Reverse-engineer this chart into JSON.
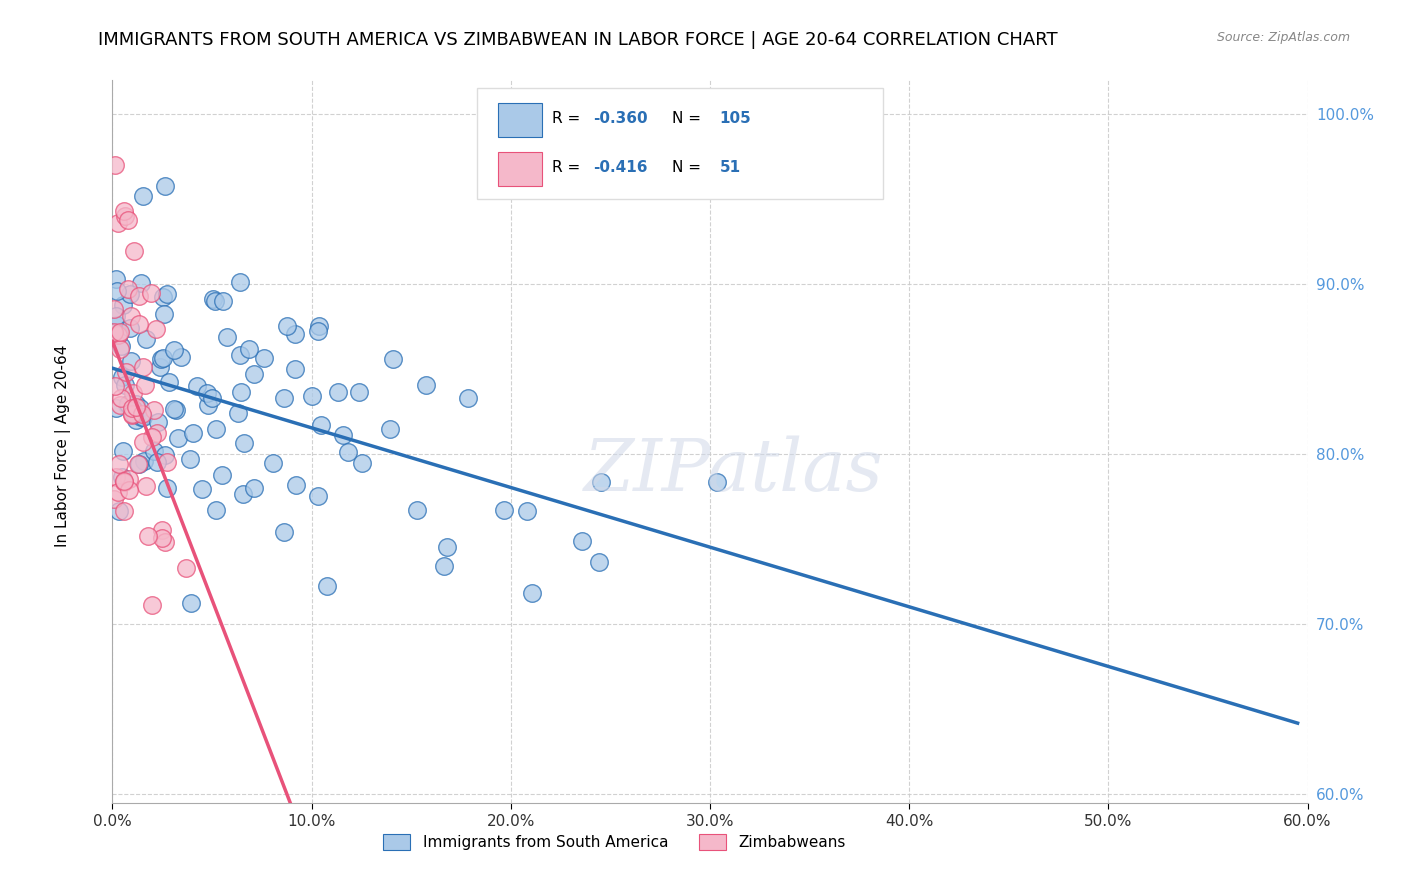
{
  "title": "IMMIGRANTS FROM SOUTH AMERICA VS ZIMBABWEAN IN LABOR FORCE | AGE 20-64 CORRELATION CHART",
  "source": "Source: ZipAtlas.com",
  "ylabel": "In Labor Force | Age 20-64",
  "legend1_label": "Immigrants from South America",
  "legend2_label": "Zimbabweans",
  "R1": -0.36,
  "N1": 105,
  "R2": -0.416,
  "N2": 51,
  "xlim": [
    0.0,
    0.6
  ],
  "ylim": [
    0.595,
    1.02
  ],
  "xticks": [
    0.0,
    0.1,
    0.2,
    0.3,
    0.4,
    0.5,
    0.6
  ],
  "yticks": [
    0.6,
    0.7,
    0.8,
    0.9,
    1.0
  ],
  "color_blue": "#aac9e8",
  "color_pink": "#f5b8ca",
  "line_blue": "#2a6fb5",
  "line_pink": "#e8527a",
  "line_pink_dashed": "#f0a0b8",
  "watermark": "ZIPatlas",
  "background_color": "#ffffff",
  "grid_color": "#cccccc",
  "title_fontsize": 13,
  "ylabel_fontsize": 11,
  "tick_fontsize": 11,
  "tick_color_y": "#5599dd",
  "tick_color_x": "#333333",
  "source_color": "#888888",
  "legend_box_color": "#dddddd"
}
